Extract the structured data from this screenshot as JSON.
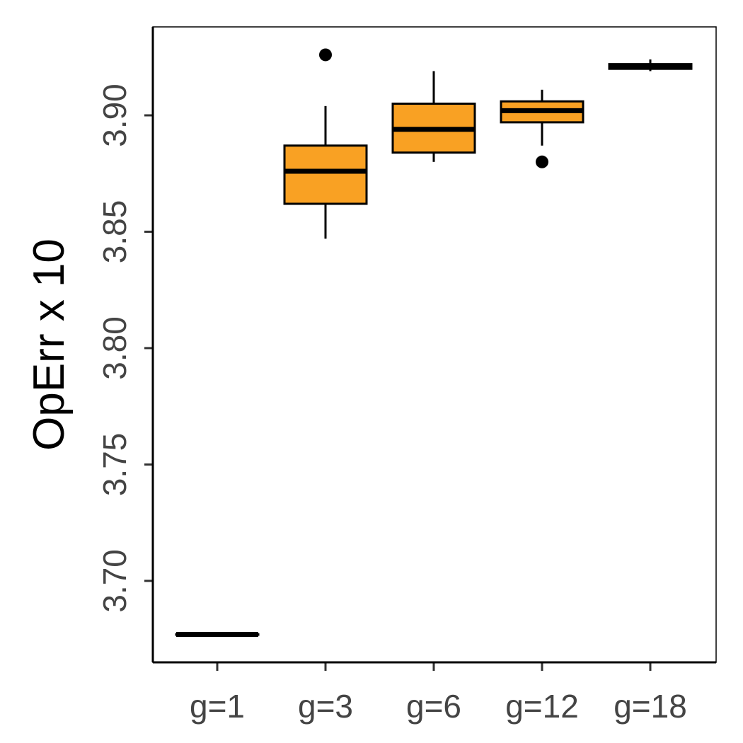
{
  "chart_data": {
    "type": "boxplot",
    "ylabel": "OpErr x 10",
    "xlabel": "",
    "ylim": [
      3.665,
      3.938
    ],
    "yticks": [
      "3.70",
      "3.75",
      "3.80",
      "3.85",
      "3.90"
    ],
    "categories": [
      "g=1",
      "g=3",
      "g=6",
      "g=12",
      "g=18"
    ],
    "boxes": [
      {
        "category": "g=1",
        "whisker_low": 3.677,
        "q1": 3.677,
        "median": 3.677,
        "q3": 3.677,
        "whisker_high": 3.677,
        "outliers": []
      },
      {
        "category": "g=3",
        "whisker_low": 3.847,
        "q1": 3.862,
        "median": 3.876,
        "q3": 3.887,
        "whisker_high": 3.904,
        "outliers": [
          3.926
        ]
      },
      {
        "category": "g=6",
        "whisker_low": 3.88,
        "q1": 3.884,
        "median": 3.894,
        "q3": 3.905,
        "whisker_high": 3.919,
        "outliers": []
      },
      {
        "category": "g=12",
        "whisker_low": 3.887,
        "q1": 3.897,
        "median": 3.902,
        "q3": 3.906,
        "whisker_high": 3.911,
        "outliers": [
          3.88
        ]
      },
      {
        "category": "g=18",
        "whisker_low": 3.919,
        "q1": 3.92,
        "median": 3.921,
        "q3": 3.922,
        "whisker_high": 3.924,
        "outliers": []
      }
    ],
    "colors": {
      "box_fill": "#F9A123",
      "stroke": "#000000",
      "tick_text": "#444444"
    },
    "grid": false,
    "legend": "none"
  }
}
